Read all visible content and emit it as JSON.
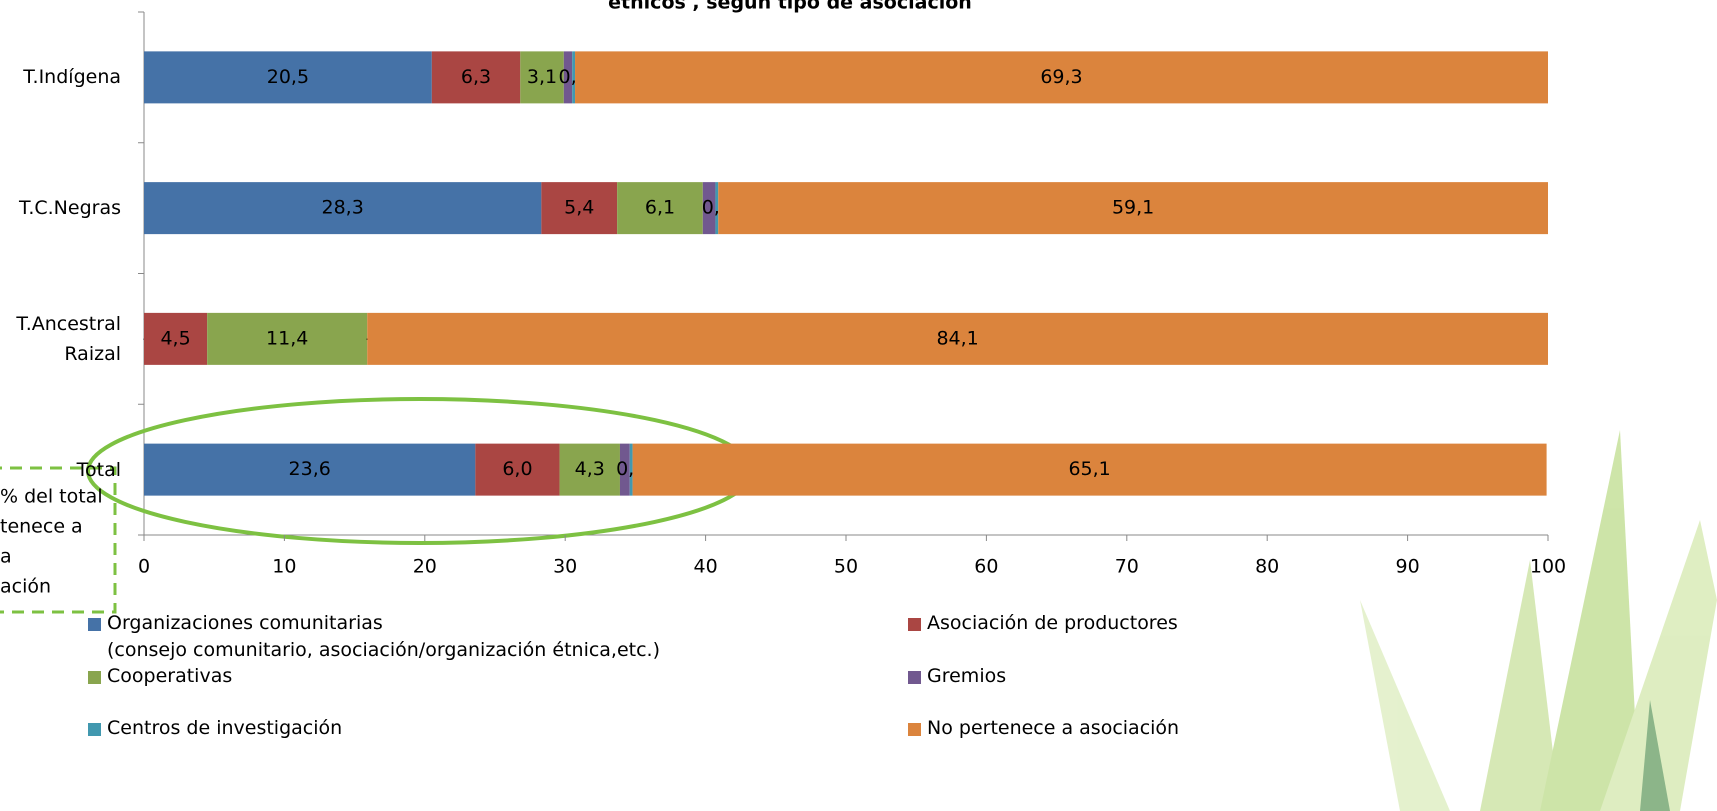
{
  "chart_data": {
    "type": "stacked-bar-horizontal",
    "title": "étnicos , según tipo de asociación",
    "categories": [
      "T.Indígena",
      "T.C.Negras",
      "T.Ancestral\nRaizal",
      "Total"
    ],
    "series": [
      {
        "name": "Organizaciones comunitarias\n(consejo comunitario, asociación/organización étnica,etc.)",
        "color": "#4572a7",
        "values": [
          20.5,
          28.3,
          0,
          23.6
        ],
        "value_labels": [
          "20,5",
          "28,3",
          "-",
          "23,6"
        ]
      },
      {
        "name": "Asociación de productores",
        "color": "#aa4643",
        "values": [
          6.3,
          5.4,
          4.5,
          6.0
        ],
        "value_labels": [
          "6,3",
          "5,4",
          "4,5",
          "6,0"
        ]
      },
      {
        "name": "Cooperativas",
        "color": "#89a54e",
        "values": [
          3.1,
          6.1,
          11.4,
          4.3
        ],
        "value_labels": [
          "3,1",
          "6,1",
          "11,4",
          "4,3"
        ]
      },
      {
        "name": "Gremios",
        "color": "#71588f",
        "values": [
          0.6,
          0.9,
          0,
          0.7
        ],
        "value_labels": [
          null,
          null,
          "-",
          null
        ]
      },
      {
        "name": "Centros de investigación",
        "color": "#4198af",
        "values": [
          0.2,
          0.2,
          0,
          0.2
        ],
        "value_labels": [
          "0,2",
          "0,2",
          null,
          "0,2"
        ]
      },
      {
        "name": "No pertenece a asociación",
        "color": "#db843d",
        "values": [
          69.3,
          59.1,
          84.1,
          65.1
        ],
        "value_labels": [
          "69,3",
          "59,1",
          "84,1",
          "65,1"
        ]
      }
    ],
    "xlim": [
      0,
      100
    ],
    "xticks": [
      0,
      10,
      20,
      30,
      40,
      50,
      60,
      70,
      80,
      90,
      100
    ],
    "annotation": [
      "% del total",
      "tenece a",
      "a",
      "ación"
    ]
  }
}
